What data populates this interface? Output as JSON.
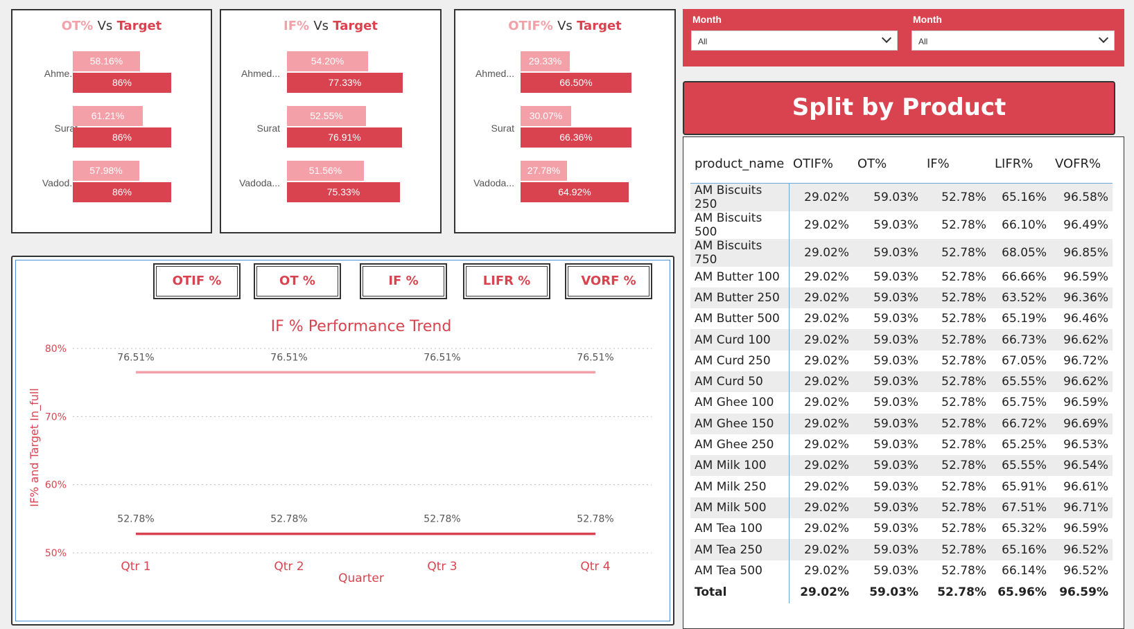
{
  "kpi_cards": [
    {
      "title_metric": "OT%",
      "title_vs": "Vs",
      "title_target": "Target",
      "rows": [
        {
          "city": "Ahme...",
          "actual": "58.16%",
          "target": "86%",
          "actual_frac": 0.58,
          "target_frac": 0.86
        },
        {
          "city": "Surat",
          "actual": "61.21%",
          "target": "86%",
          "actual_frac": 0.61,
          "target_frac": 0.86
        },
        {
          "city": "Vadod...",
          "actual": "57.98%",
          "target": "86%",
          "actual_frac": 0.58,
          "target_frac": 0.86
        }
      ]
    },
    {
      "title_metric": "IF%",
      "title_vs": "Vs",
      "title_target": "Target",
      "rows": [
        {
          "city": "Ahmed...",
          "actual": "54.20%",
          "target": "77.33%"
        },
        {
          "city": "Surat",
          "actual": "52.55%",
          "target": "76.91%"
        },
        {
          "city": "Vadoda...",
          "actual": "51.56%",
          "target": "75.33%"
        }
      ]
    },
    {
      "title_metric": "OTIF%",
      "title_vs": "Vs",
      "title_target": "Target",
      "rows": [
        {
          "city": "Ahmed...",
          "actual": "29.33%",
          "target": "66.50%"
        },
        {
          "city": "Surat",
          "actual": "30.07%",
          "target": "66.36%"
        },
        {
          "city": "Vadoda...",
          "actual": "27.78%",
          "target": "64.92%"
        }
      ]
    }
  ],
  "slicers": [
    {
      "label": "Month",
      "value": "All"
    },
    {
      "label": "Month",
      "value": "All"
    }
  ],
  "split_title": "Split by Product",
  "table": {
    "columns": [
      "product_name",
      "OTIF%",
      "OT%",
      "IF%",
      "LIFR%",
      "VOFR%"
    ],
    "rows": [
      [
        "AM Biscuits 250",
        "29.02%",
        "59.03%",
        "52.78%",
        "65.16%",
        "96.58%"
      ],
      [
        "AM Biscuits 500",
        "29.02%",
        "59.03%",
        "52.78%",
        "66.10%",
        "96.49%"
      ],
      [
        "AM Biscuits 750",
        "29.02%",
        "59.03%",
        "52.78%",
        "68.05%",
        "96.85%"
      ],
      [
        "AM Butter 100",
        "29.02%",
        "59.03%",
        "52.78%",
        "66.66%",
        "96.59%"
      ],
      [
        "AM Butter 250",
        "29.02%",
        "59.03%",
        "52.78%",
        "63.52%",
        "96.36%"
      ],
      [
        "AM Butter 500",
        "29.02%",
        "59.03%",
        "52.78%",
        "65.19%",
        "96.46%"
      ],
      [
        "AM Curd 100",
        "29.02%",
        "59.03%",
        "52.78%",
        "66.73%",
        "96.62%"
      ],
      [
        "AM Curd 250",
        "29.02%",
        "59.03%",
        "52.78%",
        "67.05%",
        "96.72%"
      ],
      [
        "AM Curd 50",
        "29.02%",
        "59.03%",
        "52.78%",
        "65.55%",
        "96.62%"
      ],
      [
        "AM Ghee 100",
        "29.02%",
        "59.03%",
        "52.78%",
        "65.75%",
        "96.59%"
      ],
      [
        "AM Ghee 150",
        "29.02%",
        "59.03%",
        "52.78%",
        "66.72%",
        "96.69%"
      ],
      [
        "AM Ghee 250",
        "29.02%",
        "59.03%",
        "52.78%",
        "65.25%",
        "96.53%"
      ],
      [
        "AM Milk 100",
        "29.02%",
        "59.03%",
        "52.78%",
        "65.55%",
        "96.54%"
      ],
      [
        "AM Milk 250",
        "29.02%",
        "59.03%",
        "52.78%",
        "65.91%",
        "96.61%"
      ],
      [
        "AM Milk 500",
        "29.02%",
        "59.03%",
        "52.78%",
        "67.51%",
        "96.71%"
      ],
      [
        "AM Tea 100",
        "29.02%",
        "59.03%",
        "52.78%",
        "65.32%",
        "96.59%"
      ],
      [
        "AM Tea 250",
        "29.02%",
        "59.03%",
        "52.78%",
        "65.16%",
        "96.52%"
      ],
      [
        "AM Tea 500",
        "29.02%",
        "59.03%",
        "52.78%",
        "66.14%",
        "96.52%"
      ]
    ],
    "total": [
      "Total",
      "29.02%",
      "59.03%",
      "52.78%",
      "65.96%",
      "96.59%"
    ]
  },
  "metric_buttons": [
    "OTIF %",
    "OT %",
    "IF %",
    "LIFR %",
    "VORF %"
  ],
  "colors": {
    "accent": "#d9434f",
    "light_accent": "#f4a0a8",
    "border": "#333333",
    "table_divider": "#6aa7d8"
  },
  "chart_data": {
    "type": "line",
    "title": "IF % Performance Trend",
    "xlabel": "Quarter",
    "ylabel": "IF% and Target In_full",
    "categories": [
      "Qtr 1",
      "Qtr 2",
      "Qtr 3",
      "Qtr 4"
    ],
    "ylim": [
      50,
      80
    ],
    "yticks": [
      "50%",
      "60%",
      "70%",
      "80%"
    ],
    "grid": true,
    "series": [
      {
        "values": [
          76.51,
          76.51,
          76.51,
          76.51
        ],
        "labels": [
          "76.51%",
          "76.51%",
          "76.51%",
          "76.51%"
        ],
        "color": "#f4a0a8"
      },
      {
        "values": [
          52.78,
          52.78,
          52.78,
          52.78
        ],
        "labels": [
          "52.78%",
          "52.78%",
          "52.78%",
          "52.78%"
        ],
        "color": "#d9434f"
      }
    ]
  }
}
